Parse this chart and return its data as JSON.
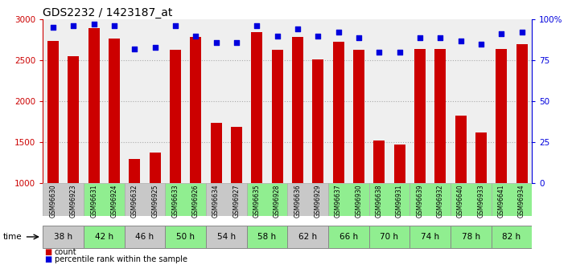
{
  "title": "GDS2232 / 1423187_at",
  "samples": [
    "GSM96630",
    "GSM96923",
    "GSM96631",
    "GSM96924",
    "GSM96632",
    "GSM96925",
    "GSM96633",
    "GSM96926",
    "GSM96634",
    "GSM96927",
    "GSM96635",
    "GSM96928",
    "GSM96636",
    "GSM96929",
    "GSM96637",
    "GSM96930",
    "GSM96638",
    "GSM96931",
    "GSM96639",
    "GSM96932",
    "GSM96640",
    "GSM96933",
    "GSM96641",
    "GSM96934"
  ],
  "counts": [
    2740,
    2550,
    2890,
    2770,
    1290,
    1370,
    2630,
    2790,
    1730,
    1680,
    2840,
    2630,
    2790,
    2510,
    2730,
    2630,
    1520,
    1470,
    2640,
    2640,
    1820,
    1620,
    2640,
    2700
  ],
  "percentile_ranks": [
    95,
    96,
    97,
    96,
    82,
    83,
    96,
    90,
    86,
    86,
    96,
    90,
    94,
    90,
    92,
    89,
    80,
    80,
    89,
    89,
    87,
    85,
    91,
    92
  ],
  "time_groups": [
    {
      "label": "38 h",
      "samples": [
        "GSM96630",
        "GSM96923"
      ],
      "color": "#c8c8c8"
    },
    {
      "label": "42 h",
      "samples": [
        "GSM96631",
        "GSM96924"
      ],
      "color": "#90ee90"
    },
    {
      "label": "46 h",
      "samples": [
        "GSM96632",
        "GSM96925"
      ],
      "color": "#c8c8c8"
    },
    {
      "label": "50 h",
      "samples": [
        "GSM96633",
        "GSM96926"
      ],
      "color": "#90ee90"
    },
    {
      "label": "54 h",
      "samples": [
        "GSM96634",
        "GSM96927"
      ],
      "color": "#c8c8c8"
    },
    {
      "label": "58 h",
      "samples": [
        "GSM96635",
        "GSM96928"
      ],
      "color": "#90ee90"
    },
    {
      "label": "62 h",
      "samples": [
        "GSM96636",
        "GSM96929"
      ],
      "color": "#c8c8c8"
    },
    {
      "label": "66 h",
      "samples": [
        "GSM96637",
        "GSM96930"
      ],
      "color": "#90ee90"
    },
    {
      "label": "70 h",
      "samples": [
        "GSM96638",
        "GSM96931"
      ],
      "color": "#90ee90"
    },
    {
      "label": "74 h",
      "samples": [
        "GSM96639",
        "GSM96932"
      ],
      "color": "#90ee90"
    },
    {
      "label": "78 h",
      "samples": [
        "GSM96640",
        "GSM96933"
      ],
      "color": "#90ee90"
    },
    {
      "label": "82 h",
      "samples": [
        "GSM96641",
        "GSM96934"
      ],
      "color": "#90ee90"
    }
  ],
  "bar_color": "#cc0000",
  "dot_color": "#0000dd",
  "ylim_left": [
    1000,
    3000
  ],
  "ylim_right": [
    0,
    100
  ],
  "yticks_left": [
    1000,
    1500,
    2000,
    2500,
    3000
  ],
  "yticks_right": [
    0,
    25,
    50,
    75,
    100
  ],
  "ytick_labels_right": [
    "0",
    "25",
    "50",
    "75",
    "100%"
  ],
  "bar_width": 0.55,
  "background_color": "#ffffff",
  "plot_bg_color": "#efefef",
  "grid_color": "#888888",
  "title_fontsize": 10,
  "axis_label_color_left": "#cc0000",
  "axis_label_color_right": "#0000dd"
}
